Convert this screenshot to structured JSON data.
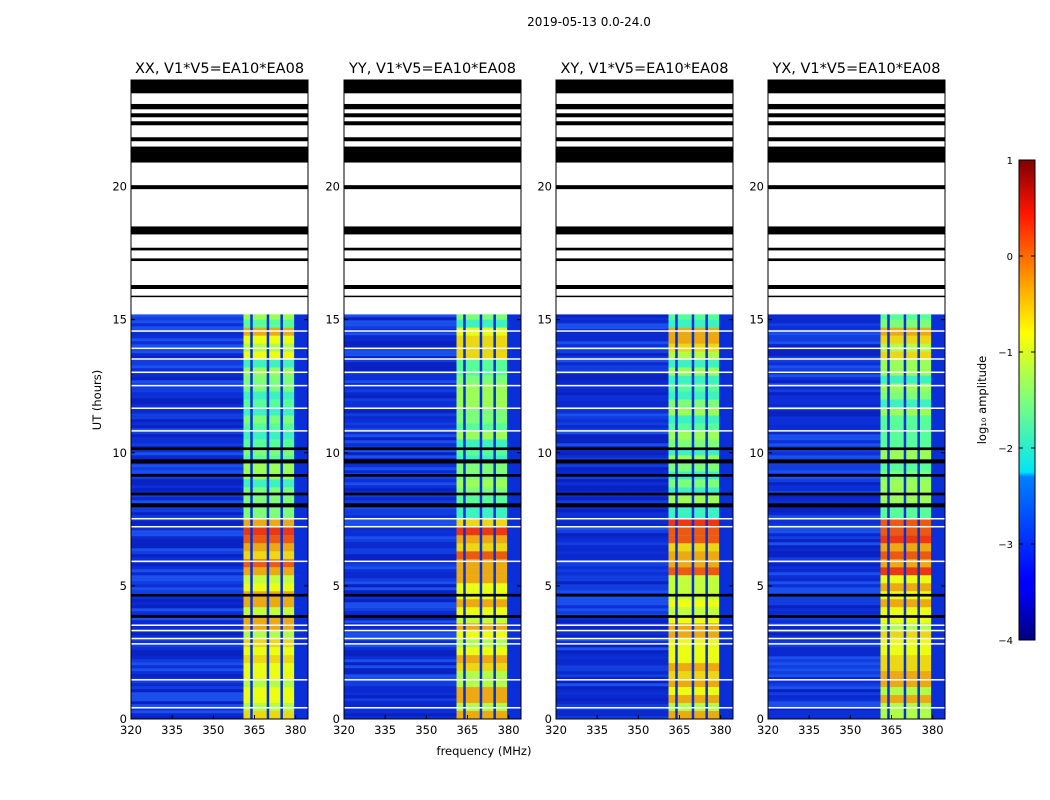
{
  "chart_data": {
    "type": "heatmap",
    "suptitle": "2019-05-13 0.0-24.0",
    "xlabel": "frequency (MHz)",
    "ylabel": "UT (hours)",
    "xlim": [
      320,
      384.5
    ],
    "ylim": [
      0,
      24
    ],
    "xticks": [
      "320",
      "335",
      "350",
      "365",
      "380"
    ],
    "yticks": [
      "0",
      "5",
      "10",
      "15",
      "20"
    ],
    "panels": [
      {
        "title": "XX, V1*V5=EA10*EA08"
      },
      {
        "title": "YY, V1*V5=EA10*EA08"
      },
      {
        "title": "XY, V1*V5=EA10*EA08"
      },
      {
        "title": "YX, V1*V5=EA10*EA08"
      }
    ],
    "colorbar": {
      "label": "log₁₀ amplitude",
      "range": [
        -4,
        1
      ],
      "ticks": [
        "1",
        "0",
        "−1",
        "−2",
        "−3",
        "−4"
      ]
    },
    "signal_band_mhz": [
      361,
      380
    ],
    "signal_channels_mhz": [
      364,
      370,
      375,
      380
    ],
    "flagged_black_hours": [
      [
        23.5,
        24
      ],
      [
        22.9,
        23.1
      ],
      [
        22.6,
        22.75
      ],
      [
        22.3,
        22.45
      ],
      [
        21.7,
        21.85
      ],
      [
        20.9,
        21.5
      ],
      [
        19.9,
        20.05
      ],
      [
        18.2,
        18.5
      ],
      [
        17.6,
        17.7
      ],
      [
        17.2,
        17.3
      ],
      [
        16.15,
        16.3
      ],
      [
        15.85,
        15.9
      ],
      [
        10.1,
        10.2
      ],
      [
        9.6,
        9.75
      ],
      [
        9.1,
        9.2
      ],
      [
        8.4,
        8.5
      ],
      [
        7.95,
        8.1
      ],
      [
        4.6,
        4.7
      ],
      [
        3.8,
        3.9
      ]
    ],
    "gap_white_hours": [
      [
        23.1,
        23.5
      ],
      [
        22.75,
        22.9
      ],
      [
        22.45,
        22.6
      ],
      [
        21.85,
        22.3
      ],
      [
        21.5,
        21.7
      ],
      [
        20.05,
        20.9
      ],
      [
        18.5,
        19.9
      ],
      [
        17.7,
        18.2
      ],
      [
        17.3,
        17.6
      ],
      [
        16.3,
        17.2
      ],
      [
        15.9,
        16.15
      ],
      [
        15.2,
        15.85
      ],
      [
        14.55,
        14.6
      ],
      [
        13.9,
        13.95
      ],
      [
        13.5,
        13.55
      ],
      [
        13.0,
        13.05
      ],
      [
        12.5,
        12.55
      ],
      [
        11.65,
        11.7
      ],
      [
        10.8,
        10.85
      ],
      [
        7.5,
        7.55
      ],
      [
        7.2,
        7.25
      ],
      [
        5.9,
        5.95
      ],
      [
        3.5,
        3.55
      ],
      [
        3.3,
        3.35
      ],
      [
        3.0,
        3.05
      ],
      [
        2.8,
        2.85
      ],
      [
        1.45,
        1.5
      ],
      [
        0.4,
        0.45
      ]
    ]
  }
}
